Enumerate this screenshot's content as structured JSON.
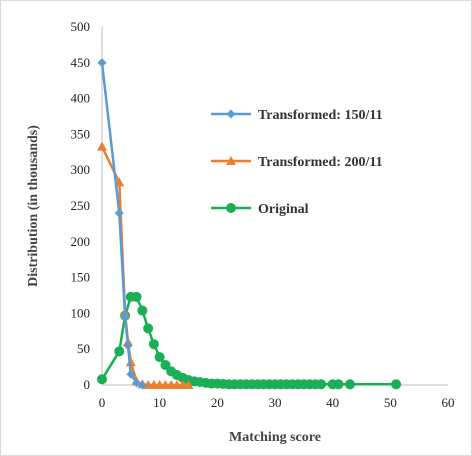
{
  "chart_data": {
    "type": "line",
    "title": "",
    "xlabel": "Matching score",
    "ylabel": "Distribution (in thousands)",
    "xlim": [
      0,
      60
    ],
    "ylim": [
      0,
      500
    ],
    "xticks": [
      "0",
      "10",
      "20",
      "30",
      "40",
      "50",
      "60"
    ],
    "yticks": [
      "0",
      "50",
      "100",
      "150",
      "200",
      "250",
      "300",
      "350",
      "400",
      "450",
      "500"
    ],
    "grid": false,
    "legend_position": "right",
    "series": [
      {
        "name": "Transformed: 150/11",
        "color": "#5b9bd5",
        "marker": "diamond",
        "x": [
          0,
          3,
          4,
          4.5,
          5,
          6,
          7
        ],
        "y": [
          450,
          240,
          95,
          55,
          15,
          3,
          0
        ]
      },
      {
        "name": "Transformed: 200/11",
        "color": "#ed7d31",
        "marker": "triangle",
        "x": [
          0,
          3,
          4,
          4.5,
          5,
          6,
          7,
          8,
          9,
          10,
          11,
          12,
          13,
          14,
          15
        ],
        "y": [
          333,
          283,
          100,
          60,
          32,
          5,
          1,
          0,
          0,
          0,
          0,
          0,
          0,
          0,
          0
        ]
      },
      {
        "name": "Original",
        "color": "#1aaf54",
        "marker": "circle",
        "x": [
          0,
          3,
          4,
          5,
          6,
          7,
          8,
          9,
          10,
          11,
          12,
          13,
          14,
          15,
          16,
          17,
          18,
          19,
          20,
          21,
          22,
          23,
          24,
          25,
          26,
          27,
          28,
          29,
          30,
          31,
          32,
          33,
          34,
          35,
          36,
          37,
          38,
          40,
          41,
          43,
          51
        ],
        "y": [
          8,
          47,
          97,
          123,
          123,
          104,
          79,
          57,
          39,
          28,
          19,
          14,
          10,
          7,
          5,
          4,
          3,
          2,
          2,
          1.5,
          1,
          1,
          1,
          1,
          1,
          1,
          1,
          1,
          1,
          1,
          1,
          1,
          1,
          1,
          1,
          1,
          1,
          1,
          1,
          1,
          1
        ]
      }
    ]
  }
}
